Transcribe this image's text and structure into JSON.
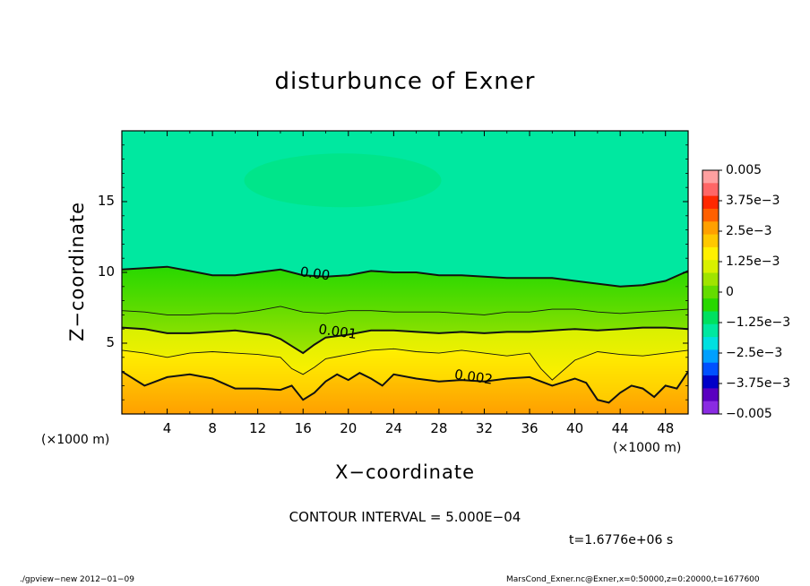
{
  "title": "disturbunce of Exner",
  "xlabel": "X−coordinate",
  "ylabel": "Z−coordinate",
  "x_unit_left": "(×1000 m)",
  "x_unit_right": "(×1000 m)",
  "contour_interval": "CONTOUR INTERVAL = 5.000E−04",
  "time_label": "t=1.6776e+06 s",
  "footer_left": "./gpview−new   2012−01−09",
  "footer_right": "MarsCond_Exner.nc@Exner,x=0:50000,z=0:20000,t=1677600",
  "colors": {
    "levels": [
      "#8a2be2",
      "#5a00c0",
      "#0000c8",
      "#0050ff",
      "#00a0ff",
      "#00e0e0",
      "#00e8a0",
      "#00e060",
      "#28d800",
      "#64dc00",
      "#a0e400",
      "#d8f000",
      "#fff000",
      "#ffc800",
      "#ffa000",
      "#ff6000",
      "#ff2800",
      "#ff6666",
      "#ffa0a0"
    ]
  },
  "chart_data": {
    "type": "contour",
    "title": "disturbunce of Exner",
    "xlabel": "X−coordinate",
    "ylabel": "Z−coordinate",
    "xlim": [
      0,
      50
    ],
    "ylim": [
      0,
      20
    ],
    "xticks": [
      4,
      8,
      12,
      16,
      20,
      24,
      28,
      32,
      36,
      40,
      44,
      48
    ],
    "yticks": [
      5,
      10,
      15
    ],
    "contour_interval": 0.0005,
    "contour_labels": [
      {
        "text": "0.00",
        "x": 17,
        "z": 9.6
      },
      {
        "text": "0.001",
        "x": 19,
        "z": 5.5
      },
      {
        "text": "0.002",
        "x": 31,
        "z": 2.3
      }
    ],
    "contours": [
      {
        "level": 0.0,
        "bold": true,
        "x": [
          0,
          2,
          4,
          6,
          8,
          10,
          12,
          14,
          16,
          18,
          20,
          22,
          24,
          26,
          28,
          30,
          32,
          34,
          36,
          38,
          40,
          42,
          44,
          46,
          48,
          50
        ],
        "z": [
          10.2,
          10.3,
          10.4,
          10.1,
          9.8,
          9.8,
          10.0,
          10.2,
          9.8,
          9.7,
          9.8,
          10.1,
          10.0,
          10.0,
          9.8,
          9.8,
          9.7,
          9.6,
          9.6,
          9.6,
          9.4,
          9.2,
          9.0,
          9.1,
          9.4,
          10.1
        ]
      },
      {
        "level": 0.0005,
        "bold": false,
        "x": [
          0,
          2,
          4,
          6,
          8,
          10,
          12,
          14,
          16,
          18,
          20,
          22,
          24,
          26,
          28,
          30,
          32,
          34,
          36,
          38,
          40,
          42,
          44,
          46,
          48,
          50
        ],
        "z": [
          7.3,
          7.2,
          7.0,
          7.0,
          7.1,
          7.1,
          7.3,
          7.6,
          7.2,
          7.1,
          7.3,
          7.3,
          7.2,
          7.2,
          7.2,
          7.1,
          7.0,
          7.2,
          7.2,
          7.4,
          7.4,
          7.2,
          7.1,
          7.2,
          7.3,
          7.4
        ]
      },
      {
        "level": 0.001,
        "bold": true,
        "x": [
          0,
          2,
          4,
          6,
          8,
          10,
          12,
          13,
          14,
          15,
          16,
          17,
          18,
          20,
          22,
          24,
          26,
          28,
          30,
          32,
          34,
          36,
          38,
          40,
          42,
          44,
          46,
          48,
          50
        ],
        "z": [
          6.1,
          6.0,
          5.7,
          5.7,
          5.8,
          5.9,
          5.7,
          5.6,
          5.3,
          4.8,
          4.3,
          4.9,
          5.4,
          5.6,
          5.9,
          5.9,
          5.8,
          5.7,
          5.8,
          5.7,
          5.8,
          5.8,
          5.9,
          6.0,
          5.9,
          6.0,
          6.1,
          6.1,
          6.0
        ]
      },
      {
        "level": 0.0015,
        "bold": false,
        "x": [
          0,
          2,
          4,
          6,
          8,
          10,
          12,
          14,
          15,
          16,
          17,
          18,
          20,
          22,
          24,
          26,
          28,
          30,
          32,
          34,
          36,
          37,
          38,
          40,
          42,
          44,
          46,
          48,
          50
        ],
        "z": [
          4.5,
          4.3,
          4.0,
          4.3,
          4.4,
          4.3,
          4.2,
          4.0,
          3.2,
          2.8,
          3.3,
          3.9,
          4.2,
          4.5,
          4.6,
          4.4,
          4.3,
          4.5,
          4.3,
          4.1,
          4.3,
          3.2,
          2.4,
          3.8,
          4.4,
          4.2,
          4.1,
          4.3,
          4.5
        ]
      },
      {
        "level": 0.002,
        "bold": true,
        "x": [
          0,
          2,
          4,
          6,
          8,
          10,
          12,
          14,
          15,
          16,
          17,
          18,
          19,
          20,
          21,
          22,
          23,
          24,
          26,
          28,
          30,
          32,
          34,
          36,
          38,
          40,
          41,
          42,
          43,
          44,
          45,
          46,
          47,
          48,
          49,
          50
        ],
        "z": [
          3.0,
          2.0,
          2.6,
          2.8,
          2.5,
          1.8,
          1.8,
          1.7,
          2.0,
          1.0,
          1.5,
          2.3,
          2.8,
          2.4,
          2.9,
          2.5,
          2.0,
          2.8,
          2.5,
          2.3,
          2.4,
          2.3,
          2.5,
          2.6,
          2.0,
          2.5,
          2.2,
          1.0,
          0.8,
          1.5,
          2.0,
          1.8,
          1.2,
          2.0,
          1.8,
          3.0
        ]
      }
    ],
    "colorbar": {
      "labels": [
        "0.005",
        "3.75e−3",
        "2.5e−3",
        "1.25e−3",
        "0",
        "−1.25e−3",
        "−2.5e−3",
        "−3.75e−3",
        "−0.005"
      ],
      "values": [
        0.005,
        0.00375,
        0.0025,
        0.00125,
        0,
        -0.00125,
        -0.0025,
        -0.00375,
        -0.005
      ],
      "range": [
        -0.005,
        0.005
      ]
    }
  }
}
